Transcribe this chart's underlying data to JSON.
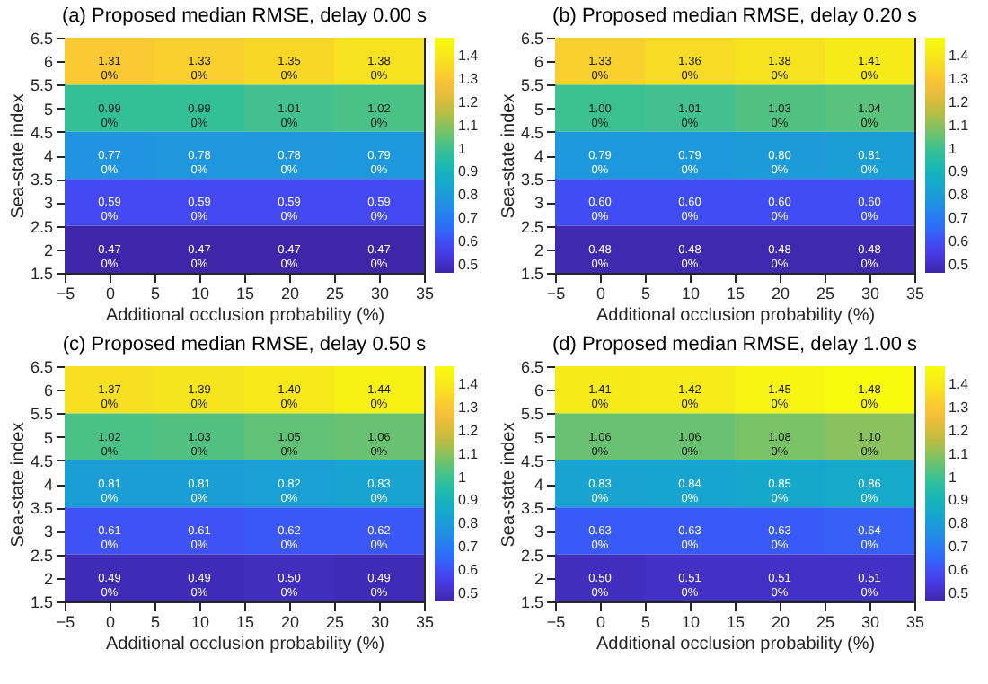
{
  "chart_data": [
    {
      "type": "heatmap",
      "title": "(a) Proposed median RMSE, delay 0.00 s",
      "xlabel": "Additional occlusion probability (%)",
      "ylabel": "Sea-state index",
      "x": [
        0,
        10,
        20,
        30
      ],
      "y": [
        6,
        5,
        4,
        3,
        2
      ],
      "cells": [
        [
          1.31,
          1.33,
          1.35,
          1.38
        ],
        [
          0.99,
          0.99,
          1.01,
          1.02
        ],
        [
          0.77,
          0.78,
          0.78,
          0.79
        ],
        [
          0.59,
          0.59,
          0.59,
          0.59
        ],
        [
          0.47,
          0.47,
          0.47,
          0.47
        ]
      ],
      "cell_labels": [
        [
          "1.31\n0%",
          "1.33\n0%",
          "1.35\n0%",
          "1.38\n0%"
        ],
        [
          "0.99\n0%",
          "0.99\n0%",
          "1.01\n0%",
          "1.02\n0%"
        ],
        [
          "0.77\n0%",
          "0.78\n0%",
          "0.78\n0%",
          "0.79\n0%"
        ],
        [
          "0.59\n0%",
          "0.59\n0%",
          "0.59\n0%",
          "0.59\n0%"
        ],
        [
          "0.47\n0%",
          "0.47\n0%",
          "0.47\n0%",
          "0.47\n0%"
        ]
      ],
      "xlim": [
        -5,
        35
      ],
      "xticks": [
        -5,
        0,
        5,
        10,
        15,
        20,
        25,
        30,
        35
      ],
      "ylim": [
        1.5,
        6.5
      ],
      "yticks": [
        1.5,
        2,
        2.5,
        3,
        3.5,
        4,
        4.5,
        5,
        5.5,
        6,
        6.5
      ],
      "clim": [
        0.47,
        1.48
      ],
      "cticks": [
        0.5,
        0.6,
        0.7,
        0.8,
        0.9,
        1,
        1.1,
        1.2,
        1.3,
        1.4
      ]
    },
    {
      "type": "heatmap",
      "title": "(b) Proposed median RMSE, delay 0.20 s",
      "xlabel": "Additional occlusion probability (%)",
      "ylabel": "Sea-state index",
      "x": [
        0,
        10,
        20,
        30
      ],
      "y": [
        6,
        5,
        4,
        3,
        2
      ],
      "cells": [
        [
          1.33,
          1.36,
          1.38,
          1.41
        ],
        [
          1.0,
          1.01,
          1.03,
          1.04
        ],
        [
          0.79,
          0.79,
          0.8,
          0.81
        ],
        [
          0.6,
          0.6,
          0.6,
          0.6
        ],
        [
          0.48,
          0.48,
          0.48,
          0.48
        ]
      ],
      "cell_labels": [
        [
          "1.33\n0%",
          "1.36\n0%",
          "1.38\n0%",
          "1.41\n0%"
        ],
        [
          "1.00\n0%",
          "1.01\n0%",
          "1.03\n0%",
          "1.04\n0%"
        ],
        [
          "0.79\n0%",
          "0.79\n0%",
          "0.80\n0%",
          "0.81\n0%"
        ],
        [
          "0.60\n0%",
          "0.60\n0%",
          "0.60\n0%",
          "0.60\n0%"
        ],
        [
          "0.48\n0%",
          "0.48\n0%",
          "0.48\n0%",
          "0.48\n0%"
        ]
      ],
      "xlim": [
        -5,
        35
      ],
      "xticks": [
        -5,
        0,
        5,
        10,
        15,
        20,
        25,
        30,
        35
      ],
      "ylim": [
        1.5,
        6.5
      ],
      "yticks": [
        1.5,
        2,
        2.5,
        3,
        3.5,
        4,
        4.5,
        5,
        5.5,
        6,
        6.5
      ],
      "clim": [
        0.47,
        1.48
      ],
      "cticks": [
        0.5,
        0.6,
        0.7,
        0.8,
        0.9,
        1,
        1.1,
        1.2,
        1.3,
        1.4
      ]
    },
    {
      "type": "heatmap",
      "title": "(c) Proposed median RMSE, delay 0.50 s",
      "xlabel": "Additional occlusion probability (%)",
      "ylabel": "Sea-state index",
      "x": [
        0,
        10,
        20,
        30
      ],
      "y": [
        6,
        5,
        4,
        3,
        2
      ],
      "cells": [
        [
          1.37,
          1.39,
          1.4,
          1.44
        ],
        [
          1.02,
          1.03,
          1.05,
          1.06
        ],
        [
          0.81,
          0.81,
          0.82,
          0.83
        ],
        [
          0.61,
          0.61,
          0.62,
          0.62
        ],
        [
          0.49,
          0.49,
          0.5,
          0.49
        ]
      ],
      "cell_labels": [
        [
          "1.37\n0%",
          "1.39\n0%",
          "1.40\n0%",
          "1.44\n0%"
        ],
        [
          "1.02\n0%",
          "1.03\n0%",
          "1.05\n0%",
          "1.06\n0%"
        ],
        [
          "0.81\n0%",
          "0.81\n0%",
          "0.82\n0%",
          "0.83\n0%"
        ],
        [
          "0.61\n0%",
          "0.61\n0%",
          "0.62\n0%",
          "0.62\n0%"
        ],
        [
          "0.49\n0%",
          "0.49\n0%",
          "0.50\n0%",
          "0.49\n0%"
        ]
      ],
      "xlim": [
        -5,
        35
      ],
      "xticks": [
        -5,
        0,
        5,
        10,
        15,
        20,
        25,
        30,
        35
      ],
      "ylim": [
        1.5,
        6.5
      ],
      "yticks": [
        1.5,
        2,
        2.5,
        3,
        3.5,
        4,
        4.5,
        5,
        5.5,
        6,
        6.5
      ],
      "clim": [
        0.47,
        1.48
      ],
      "cticks": [
        0.5,
        0.6,
        0.7,
        0.8,
        0.9,
        1,
        1.1,
        1.2,
        1.3,
        1.4
      ]
    },
    {
      "type": "heatmap",
      "title": "(d) Proposed median RMSE, delay 1.00 s",
      "xlabel": "Additional occlusion probability (%)",
      "ylabel": "Sea-state index",
      "x": [
        0,
        10,
        20,
        30
      ],
      "y": [
        6,
        5,
        4,
        3,
        2
      ],
      "cells": [
        [
          1.41,
          1.42,
          1.45,
          1.48
        ],
        [
          1.06,
          1.06,
          1.08,
          1.1
        ],
        [
          0.83,
          0.84,
          0.85,
          0.86
        ],
        [
          0.63,
          0.63,
          0.63,
          0.64
        ],
        [
          0.5,
          0.51,
          0.51,
          0.51
        ]
      ],
      "cell_labels": [
        [
          "1.41\n0%",
          "1.42\n0%",
          "1.45\n0%",
          "1.48\n0%"
        ],
        [
          "1.06\n0%",
          "1.06\n0%",
          "1.08\n0%",
          "1.10\n0%"
        ],
        [
          "0.83\n0%",
          "0.84\n0%",
          "0.85\n0%",
          "0.86\n0%"
        ],
        [
          "0.63\n0%",
          "0.63\n0%",
          "0.63\n0%",
          "0.64\n0%"
        ],
        [
          "0.50\n0%",
          "0.51\n0%",
          "0.51\n0%",
          "0.51\n0%"
        ]
      ],
      "xlim": [
        -5,
        35
      ],
      "xticks": [
        -5,
        0,
        5,
        10,
        15,
        20,
        25,
        30,
        35
      ],
      "ylim": [
        1.5,
        6.5
      ],
      "yticks": [
        1.5,
        2,
        2.5,
        3,
        3.5,
        4,
        4.5,
        5,
        5.5,
        6,
        6.5
      ],
      "clim": [
        0.47,
        1.48
      ],
      "cticks": [
        0.5,
        0.6,
        0.7,
        0.8,
        0.9,
        1,
        1.1,
        1.2,
        1.3,
        1.4
      ]
    }
  ]
}
